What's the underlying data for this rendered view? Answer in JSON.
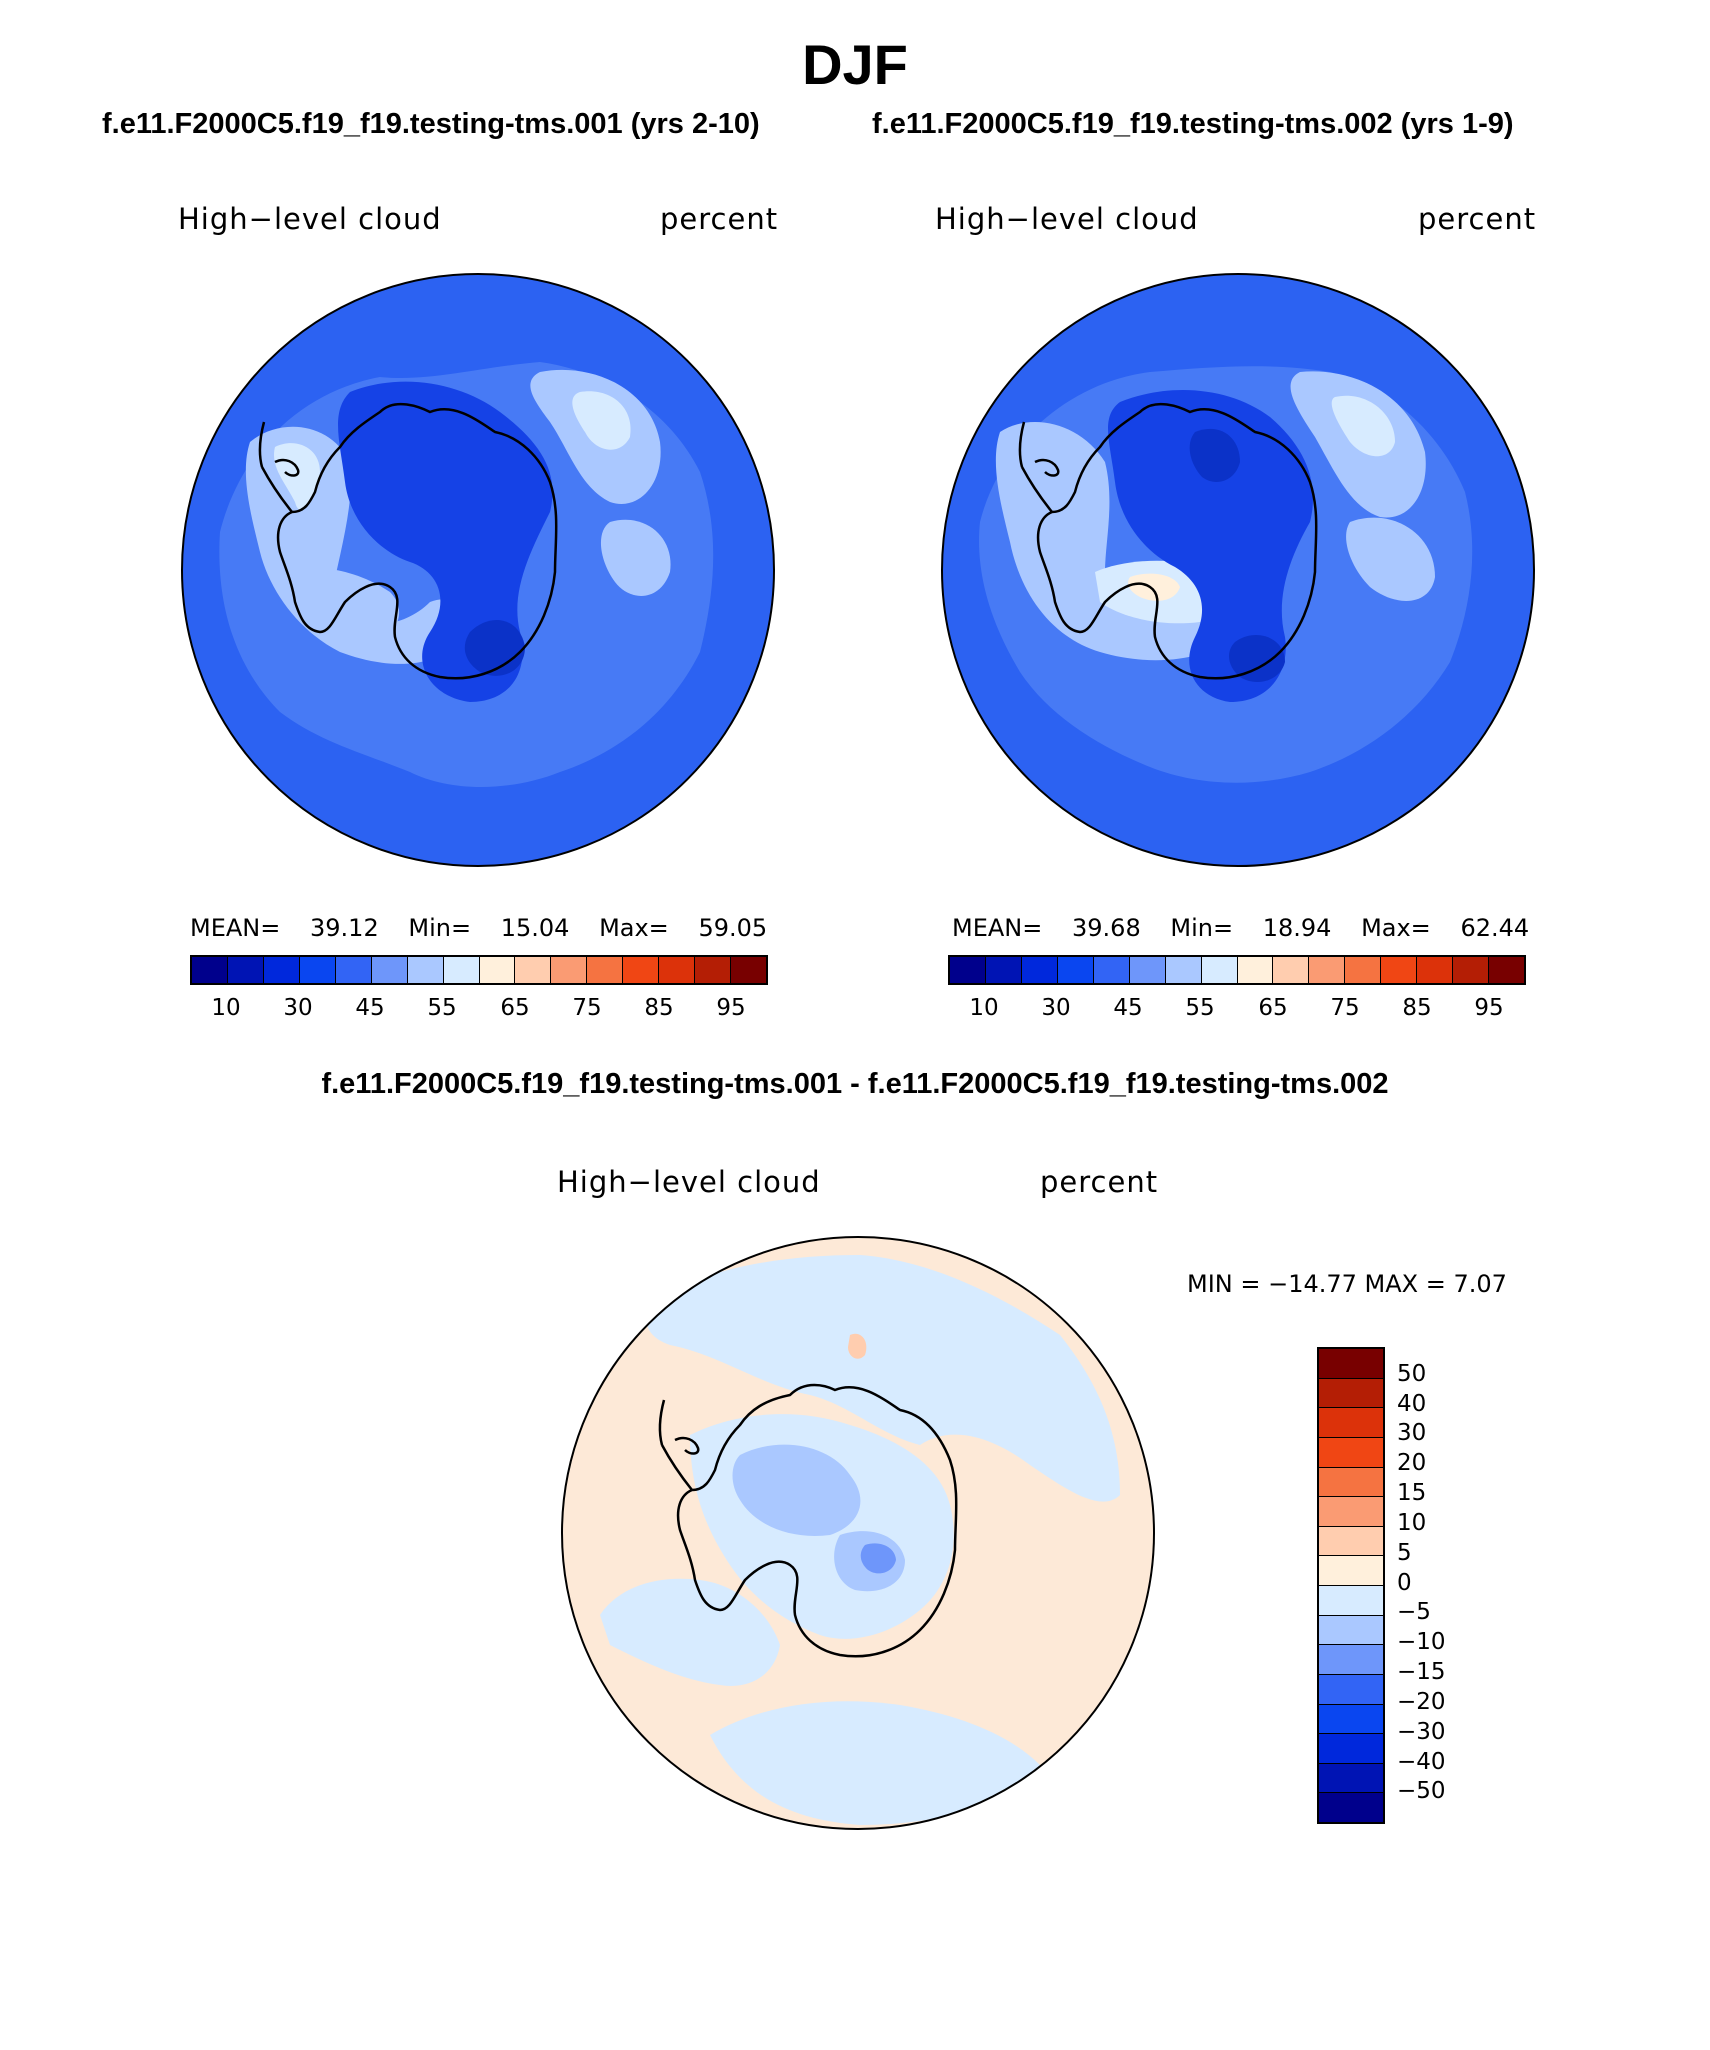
{
  "figure": {
    "title": "DJF",
    "left_case": "f.e11.F2000C5.f19_f19.testing-tms.001 (yrs 2-10)",
    "right_case": "f.e11.F2000C5.f19_f19.testing-tms.002 (yrs 1-9)",
    "diff_title": "f.e11.F2000C5.f19_f19.testing-tms.001 - f.e11.F2000C5.f19_f19.testing-tms.002"
  },
  "panels": [
    {
      "variable": "High−level cloud",
      "units": "percent",
      "mean_label": "MEAN=",
      "mean": "39.12",
      "min_label": "Min=",
      "min": "15.04",
      "max_label": "Max=",
      "max": "59.05"
    },
    {
      "variable": "High−level cloud",
      "units": "percent",
      "mean_label": "MEAN=",
      "mean": "39.68",
      "min_label": "Min=",
      "min": "18.94",
      "max_label": "Max=",
      "max": "62.44"
    }
  ],
  "diff_panel": {
    "variable": "High−level cloud",
    "units": "percent",
    "minmax_text": "MIN = −14.77 MAX =    7.07"
  },
  "colorbar_top": {
    "labels": [
      "10",
      "30",
      "45",
      "55",
      "65",
      "75",
      "85",
      "95"
    ],
    "colors": [
      "#00008c",
      "#0014b4",
      "#0028dc",
      "#0a46f0",
      "#3264f5",
      "#6e96fa",
      "#aac8ff",
      "#d7ebff",
      "#fff0dc",
      "#ffcdaf",
      "#fa9b73",
      "#f57341",
      "#f04614",
      "#dc320a",
      "#b41e05",
      "#780000"
    ]
  },
  "colorbar_diff": {
    "labels": [
      "50",
      "40",
      "30",
      "20",
      "15",
      "10",
      "5",
      "0",
      "−5",
      "−10",
      "−15",
      "−20",
      "−30",
      "−40",
      "−50"
    ],
    "colors": [
      "#780000",
      "#b41e05",
      "#dc320a",
      "#f04614",
      "#f57341",
      "#fa9b73",
      "#ffcdaf",
      "#fff0dc",
      "#d7ebff",
      "#aac8ff",
      "#6e96fa",
      "#3264f5",
      "#0a46f0",
      "#0028dc",
      "#0014b4",
      "#00008c"
    ]
  },
  "map_colors": {
    "base": "#2c62f2",
    "mid": "#5a8cf7",
    "light": "#aac8ff",
    "pale": "#d7ebff",
    "cream": "#fff0dc",
    "dark": "#1542e6",
    "darker": "#0b32c8",
    "diff_base": "#fde9d7",
    "diff_blue": "#d7ebff",
    "diff_mid": "#aac8ff",
    "diff_deep": "#6e96fa"
  }
}
